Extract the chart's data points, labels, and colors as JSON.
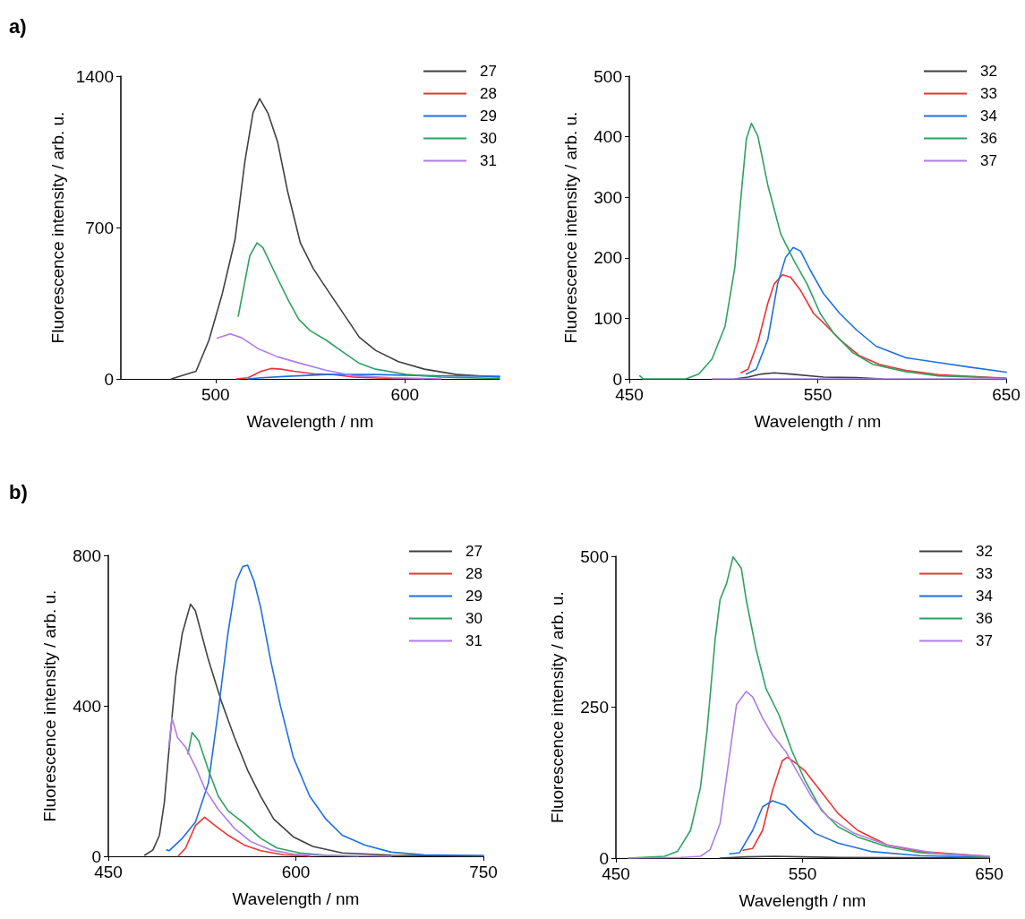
{
  "chart_data": [
    {
      "type": "line",
      "annotations": [
        "a)"
      ],
      "xlabel": "Wavelength / nm",
      "ylabel": "Fluorescence intensity / arb. u.",
      "xlim": [
        450,
        650
      ],
      "xticks": [
        500,
        600
      ],
      "ylim": [
        0,
        1400
      ],
      "yticks": [
        0,
        700,
        1400
      ],
      "legend": "top right",
      "grid": false,
      "series": [
        {
          "name": "27",
          "color": "#404040",
          "x": [
            476.7,
            489.7,
            496.5,
            503.4,
            510.3,
            515.5,
            519.8,
            523.3,
            527.6,
            532.8,
            538,
            544.8,
            551.7,
            558.6,
            569,
            575.9,
            584.5,
            596.6,
            610.3,
            627.6,
            650
          ],
          "values": [
            0,
            35,
            178,
            388,
            644,
            1005,
            1231,
            1296,
            1231,
            1096,
            870,
            629,
            509,
            418,
            283,
            193,
            132,
            80,
            45,
            20,
            8
          ]
        },
        {
          "name": "28",
          "color": "#ee3333",
          "x": [
            511.2,
            517.2,
            524.1,
            529.3,
            534.5,
            541.4,
            551.7,
            562,
            572.4,
            589.7,
            610.3
          ],
          "values": [
            0,
            5,
            35,
            48,
            45,
            35,
            24,
            20,
            9,
            3,
            0
          ]
        },
        {
          "name": "29",
          "color": "#1f6fe0",
          "x": [
            517.2,
            524.1,
            538,
            558.6,
            584.5,
            610.3,
            650
          ],
          "values": [
            0,
            5,
            12,
            20,
            20,
            15,
            12
          ]
        },
        {
          "name": "30",
          "color": "#2ca25f",
          "x": [
            512,
            518.1,
            521.9,
            525,
            532.8,
            538.8,
            544,
            550,
            558.6,
            567.2,
            575.9,
            584.5,
            601.7,
            619,
            650
          ],
          "values": [
            290,
            569,
            629,
            607,
            464,
            358,
            275,
            223,
            178,
            125,
            72,
            45,
            20,
            8,
            2
          ]
        },
        {
          "name": "31",
          "color": "#b07ce6",
          "x": [
            500.9,
            507.8,
            513.8,
            522.4,
            532.8,
            544.8,
            558.6,
            572.4,
            593,
            610.3,
            619
          ],
          "values": [
            188,
            208,
            190,
            140,
            102,
            72,
            39,
            15,
            5,
            2,
            0
          ]
        }
      ]
    },
    {
      "type": "line",
      "xlabel": "Wavelength / nm",
      "ylabel": "Fluorescence intensity / arb. u.",
      "xlim": [
        450,
        650
      ],
      "xticks": [
        450,
        550,
        650
      ],
      "ylim": [
        0,
        500
      ],
      "yticks": [
        0,
        100,
        200,
        300,
        400,
        500
      ],
      "legend": "top right",
      "grid": false,
      "series": [
        {
          "name": "32",
          "color": "#404040",
          "x": [
            506,
            513,
            520,
            526.9,
            535.6,
            553,
            570.5,
            584.4
          ],
          "values": [
            0,
            3,
            8,
            10,
            8,
            3,
            2,
            0
          ]
        },
        {
          "name": "33",
          "color": "#ee3333",
          "x": [
            509.2,
            513,
            518.2,
            523.5,
            526.9,
            531.3,
            535.6,
            540.9,
            547.8,
            554.8,
            561.7,
            572.2,
            582.6,
            596.6,
            614,
            650
          ],
          "values": [
            10,
            16,
            60,
            125,
            157,
            172,
            168,
            146,
            108,
            87,
            65,
            38,
            24,
            14,
            7,
            1
          ]
        },
        {
          "name": "34",
          "color": "#1f6fe0",
          "x": [
            512.1,
            517.4,
            523.5,
            528.7,
            533,
            537,
            540.9,
            546.1,
            553,
            561.7,
            570.5,
            580.9,
            596.6,
            614,
            631.4,
            650
          ],
          "values": [
            8,
            16,
            65,
            157,
            201,
            217,
            211,
            179,
            141,
            108,
            81,
            54,
            35,
            27,
            19,
            11
          ]
        },
        {
          "name": "36",
          "color": "#2ca25f",
          "x": [
            455.6,
            457.3,
            480,
            486.9,
            493.9,
            500.8,
            506,
            509.5,
            512.1,
            514.8,
            518.2,
            523.5,
            530.4,
            537.4,
            544.3,
            551.3,
            558.3,
            568.7,
            579.2,
            596.6,
            614,
            650
          ],
          "values": [
            5,
            0,
            0,
            8,
            33,
            87,
            184,
            309,
            396,
            422,
            401,
            320,
            239,
            195,
            157,
            108,
            76,
            43,
            24,
            12,
            5,
            1
          ]
        },
        {
          "name": "37",
          "color": "#b07ce6",
          "x": [
            494,
            650
          ],
          "values": [
            0,
            0
          ]
        }
      ]
    },
    {
      "type": "line",
      "annotations": [
        "b)"
      ],
      "xlabel": "Wavelength / nm",
      "ylabel": "Fluorescence intensity / arb. u.",
      "xlim": [
        450,
        750
      ],
      "xticks": [
        450,
        600,
        750
      ],
      "ylim": [
        0,
        800
      ],
      "yticks": [
        0,
        400,
        800
      ],
      "legend": "top right",
      "grid": false,
      "series": [
        {
          "name": "27",
          "color": "#404040",
          "x": [
            479.2,
            485.7,
            490.9,
            494.8,
            498.7,
            504,
            509.2,
            515.7,
            519.6,
            530,
            540.5,
            550.9,
            561.4,
            571.8,
            582.3,
            597.9,
            613.6,
            637.1,
            676.2,
            750
          ],
          "values": [
            3,
            17,
            56,
            143,
            290,
            480,
            593,
            670,
            653,
            523,
            411,
            316,
            229,
            160,
            99,
            52,
            26,
            9,
            3,
            0
          ]
        },
        {
          "name": "28",
          "color": "#ee3333",
          "x": [
            505.8,
            511.8,
            519.7,
            527,
            535.3,
            545.7,
            558.8,
            571.8,
            590.1,
            611
          ],
          "values": [
            0,
            22,
            82,
            104,
            82,
            56,
            30,
            15,
            4,
            0
          ]
        },
        {
          "name": "29",
          "color": "#1f6fe0",
          "x": [
            496.7,
            498.8,
            509.2,
            519.7,
            530.1,
            537.9,
            545.7,
            552.3,
            557.5,
            561.4,
            566.6,
            571.8,
            579.7,
            587.5,
            597.9,
            611,
            624,
            637.1,
            655.3,
            676.2,
            702.3,
            750
          ],
          "values": [
            17,
            15,
            48,
            91,
            195,
            385,
            593,
            731,
            770,
            774,
            731,
            662,
            523,
            402,
            264,
            160,
            99,
            56,
            30,
            11,
            4,
            2
          ]
        },
        {
          "name": "30",
          "color": "#2ca25f",
          "x": [
            513.7,
            517,
            522.3,
            530.1,
            537.9,
            545.7,
            558.8,
            571.8,
            584.9,
            603.1,
            624,
            650
          ],
          "values": [
            272,
            329,
            307,
            229,
            160,
            121,
            87,
            48,
            22,
            9,
            3,
            0
          ]
        },
        {
          "name": "31",
          "color": "#b07ce6",
          "x": [
            498.3,
            500.9,
            505.3,
            511.8,
            519.7,
            527.5,
            537.9,
            550.9,
            564,
            579.7,
            597.9,
            624,
            676.2
          ],
          "values": [
            290,
            368,
            316,
            290,
            238,
            177,
            125,
            74,
            39,
            17,
            6,
            2,
            0
          ]
        }
      ]
    },
    {
      "type": "line",
      "xlabel": "Wavelength / nm",
      "ylabel": "Fluorescence intensity / arb. u.",
      "xlim": [
        450,
        650
      ],
      "xticks": [
        450,
        550,
        650
      ],
      "ylim": [
        0,
        500
      ],
      "yticks": [
        0,
        250,
        500
      ],
      "legend": "top right",
      "grid": false,
      "series": [
        {
          "name": "32",
          "color": "#404040",
          "x": [
            505.8,
            520,
            535,
            550,
            570,
            650
          ],
          "values": [
            0,
            2,
            3,
            2,
            1,
            0
          ]
        },
        {
          "name": "33",
          "color": "#ee3333",
          "x": [
            518.1,
            523.3,
            528.6,
            533.9,
            539.1,
            541.8,
            546.1,
            551.4,
            560.2,
            569,
            579.5,
            595.3,
            612.8,
            650
          ],
          "values": [
            13,
            16,
            46,
            112,
            161,
            167,
            158,
            144,
            109,
            74,
            46,
            22,
            11,
            3
          ]
        },
        {
          "name": "34",
          "color": "#1f6fe0",
          "x": [
            511,
            516.3,
            523.3,
            528.6,
            533.9,
            540.9,
            547.9,
            556.7,
            569,
            586.5,
            612.8,
            650
          ],
          "values": [
            7,
            9,
            46,
            85,
            95,
            87,
            65,
            41,
            25,
            11,
            4,
            1
          ]
        },
        {
          "name": "36",
          "color": "#2ca25f",
          "x": [
            456.7,
            476,
            483,
            490,
            495.3,
            498.8,
            503.2,
            505.8,
            509.3,
            512.8,
            517.2,
            519.8,
            525.1,
            530.4,
            537.4,
            544.4,
            551.4,
            560.2,
            569,
            579.5,
            595.3,
            612.8,
            650
          ],
          "values": [
            0,
            3,
            11,
            46,
            117,
            210,
            363,
            428,
            455,
            499,
            480,
            428,
            346,
            281,
            237,
            177,
            128,
            79,
            52,
            35,
            19,
            9,
            2
          ]
        },
        {
          "name": "37",
          "color": "#b07ce6",
          "x": [
            456.7,
            484.7,
            495.3,
            500.5,
            505.8,
            510.2,
            514.6,
            519.8,
            523.3,
            528.6,
            533.9,
            540.9,
            547.9,
            554.9,
            563.7,
            577.7,
            595.3,
            621.6,
            650
          ],
          "values": [
            0,
            1,
            3,
            14,
            57,
            155,
            254,
            276,
            267,
            232,
            204,
            177,
            139,
            101,
            68,
            41,
            22,
            8,
            3
          ]
        }
      ]
    }
  ]
}
